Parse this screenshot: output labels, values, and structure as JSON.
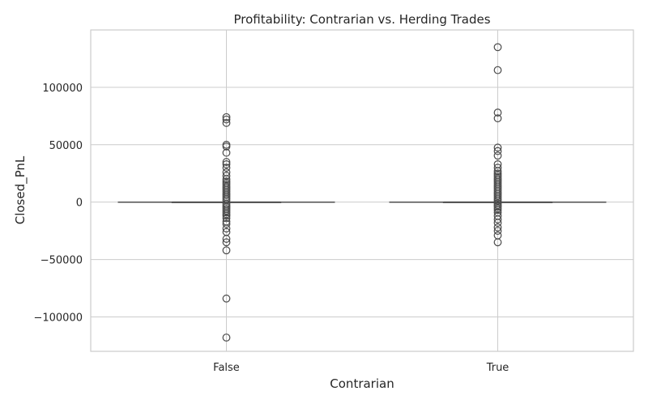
{
  "chart_data": {
    "type": "box",
    "title": "Profitability: Contrarian vs. Herding Trades",
    "xlabel": "Contrarian",
    "ylabel": "Closed_PnL",
    "categories": [
      "False",
      "True"
    ],
    "ylim": [
      -130000,
      150000
    ],
    "yticks": [
      -100000,
      -50000,
      0,
      50000,
      100000
    ],
    "ytick_labels": [
      "−100000",
      "−50000",
      "0",
      "50000",
      "100000"
    ],
    "grid": true,
    "colors": {
      "axes_edge": "#cccccc",
      "grid": "#cccccc",
      "box_line": "#4a4a4a",
      "text": "#262626"
    },
    "boxes": [
      {
        "category": "False",
        "q1": 0,
        "median": 0,
        "q3": 0,
        "whisker_low": 0,
        "whisker_high": 0,
        "outliers": [
          74000,
          72000,
          69000,
          50000,
          48500,
          43000,
          35000,
          33000,
          30000,
          26000,
          23000,
          20000,
          18000,
          16500,
          15000,
          13500,
          12000,
          10500,
          9000,
          7500,
          6000,
          4500,
          3000,
          1500,
          -1500,
          -3000,
          -4500,
          -6000,
          -7500,
          -9000,
          -10500,
          -12000,
          -14000,
          -17000,
          -19000,
          -23000,
          -26000,
          -32000,
          -35000,
          -42000,
          -84000,
          -118000
        ]
      },
      {
        "category": "True",
        "q1": 0,
        "median": 0,
        "q3": 0,
        "whisker_low": 0,
        "whisker_high": 0,
        "outliers": [
          135000,
          115000,
          78000,
          73000,
          47500,
          44500,
          40500,
          33000,
          30000,
          27000,
          25000,
          23500,
          22000,
          20500,
          19000,
          17500,
          16000,
          14500,
          13000,
          11500,
          10000,
          8500,
          7000,
          5500,
          4000,
          2500,
          1000,
          -1000,
          -2500,
          -4000,
          -5500,
          -7000,
          -9000,
          -12000,
          -15000,
          -18000,
          -22000,
          -25000,
          -29000,
          -35000
        ]
      }
    ]
  }
}
